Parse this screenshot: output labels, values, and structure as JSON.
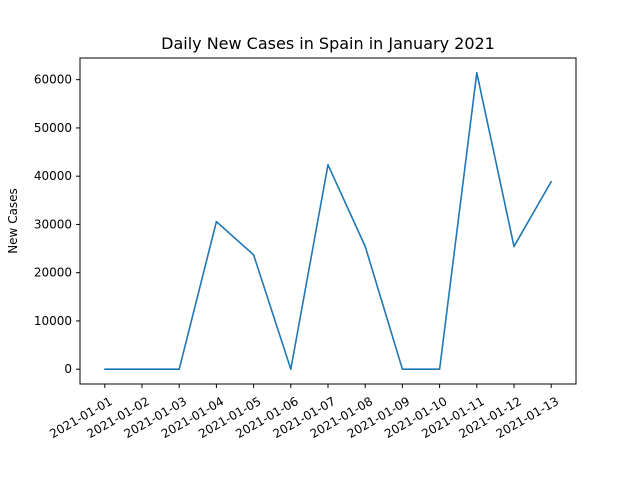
{
  "chart_data": {
    "type": "line",
    "title": "Daily New Cases in Spain in January 2021",
    "xlabel": "",
    "ylabel": "New Cases",
    "x": [
      "2021-01-01",
      "2021-01-02",
      "2021-01-03",
      "2021-01-04",
      "2021-01-05",
      "2021-01-06",
      "2021-01-07",
      "2021-01-08",
      "2021-01-09",
      "2021-01-10",
      "2021-01-11",
      "2021-01-12",
      "2021-01-13"
    ],
    "series": [
      {
        "values": [
          0,
          0,
          0,
          30579,
          23700,
          0,
          42360,
          25456,
          0,
          0,
          61422,
          25438,
          38869
        ],
        "color": "#1f77b4"
      }
    ],
    "yticks": [
      "0",
      "10000",
      "20000",
      "30000",
      "40000",
      "50000",
      "60000"
    ],
    "ylim": [
      -3071,
      64493
    ],
    "grid": false,
    "legend": "none"
  }
}
